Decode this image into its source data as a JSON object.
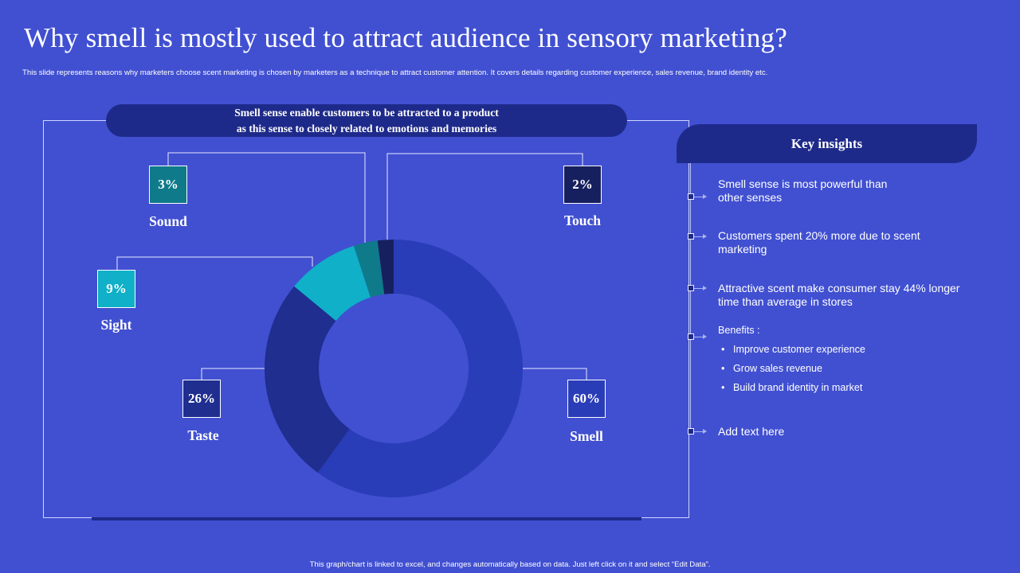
{
  "title": "Why smell is mostly used to attract audience in sensory marketing?",
  "subtitle": "This slide represents reasons why marketers choose scent marketing is chosen by marketers as a technique to attract customer attention. It covers details regarding customer experience, sales revenue, brand identity etc.",
  "banner": {
    "line1": "Smell sense enable customers to be attracted to a product",
    "line2": "as this sense to closely related to emotions and memories"
  },
  "chart_data": {
    "type": "pie",
    "variant": "donut",
    "title": "",
    "categories": [
      "Smell",
      "Taste",
      "Sight",
      "Sound",
      "Touch"
    ],
    "values": [
      60,
      26,
      9,
      3,
      2
    ],
    "labels": [
      "60%",
      "26%",
      "9%",
      "3%",
      "2%"
    ],
    "colors": [
      "#2a3db8",
      "#1f2e8f",
      "#0fb0c8",
      "#0f7a8a",
      "#17205e"
    ]
  },
  "insights": {
    "header": "Key insights",
    "items": [
      "Smell sense is most powerful than other senses",
      "Customers spent 20% more due to scent marketing",
      "Attractive scent make consumer stay 44% longer time than average in stores"
    ],
    "benefits_label": "Benefits :",
    "benefits": [
      "Improve  customer experience",
      "Grow sales revenue",
      "Build brand  identity in market"
    ],
    "bullet": "•",
    "last": "Add text here"
  },
  "footnote": "This graph/chart is linked to excel, and changes automatically based on data. Just left click on it and select “Edit Data”."
}
